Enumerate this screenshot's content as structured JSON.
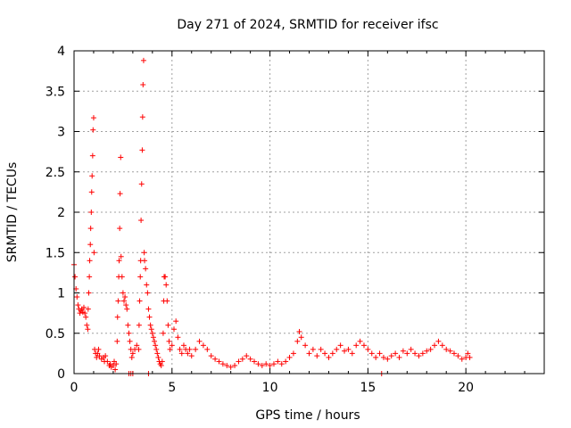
{
  "chart_data": {
    "type": "scatter",
    "title": "Day 271 of 2024, SRMTID for receiver ifsc",
    "xlabel": "GPS time / hours",
    "ylabel": "SRMTID / TECUs",
    "xlim": [
      0,
      24
    ],
    "ylim": [
      0,
      4
    ],
    "xticks": [
      "0",
      "5",
      "10",
      "15",
      "20"
    ],
    "yticks": [
      "0",
      "0.5",
      "1",
      "1.5",
      "2",
      "2.5",
      "3",
      "3.5",
      "4"
    ],
    "grid": true,
    "marker": "plus",
    "color": "#ff0000",
    "series": [
      {
        "name": "SRMTID",
        "points": [
          [
            0.0,
            1.35
          ],
          [
            0.05,
            1.2
          ],
          [
            0.1,
            1.05
          ],
          [
            0.15,
            0.95
          ],
          [
            0.2,
            0.85
          ],
          [
            0.25,
            0.8
          ],
          [
            0.3,
            0.75
          ],
          [
            0.35,
            0.78
          ],
          [
            0.4,
            0.8
          ],
          [
            0.45,
            0.76
          ],
          [
            0.5,
            0.82
          ],
          [
            0.55,
            0.75
          ],
          [
            0.6,
            0.7
          ],
          [
            0.65,
            0.6
          ],
          [
            0.7,
            0.55
          ],
          [
            0.72,
            0.8
          ],
          [
            0.75,
            1.0
          ],
          [
            0.78,
            1.2
          ],
          [
            0.8,
            1.4
          ],
          [
            0.83,
            1.6
          ],
          [
            0.85,
            1.8
          ],
          [
            0.88,
            2.0
          ],
          [
            0.9,
            2.25
          ],
          [
            0.92,
            2.45
          ],
          [
            0.95,
            2.7
          ],
          [
            0.97,
            3.02
          ],
          [
            1.0,
            3.17
          ],
          [
            1.02,
            1.5
          ],
          [
            1.05,
            0.3
          ],
          [
            1.1,
            0.25
          ],
          [
            1.15,
            0.2
          ],
          [
            1.2,
            0.25
          ],
          [
            1.25,
            0.3
          ],
          [
            1.3,
            0.22
          ],
          [
            1.4,
            0.18
          ],
          [
            1.5,
            0.2
          ],
          [
            1.55,
            0.15
          ],
          [
            1.6,
            0.22
          ],
          [
            1.7,
            0.15
          ],
          [
            1.8,
            0.1
          ],
          [
            1.85,
            0.12
          ],
          [
            1.9,
            0.08
          ],
          [
            2.0,
            0.1
          ],
          [
            2.05,
            0.15
          ],
          [
            2.1,
            0.05
          ],
          [
            2.15,
            0.12
          ],
          [
            2.2,
            0.4
          ],
          [
            2.22,
            0.7
          ],
          [
            2.25,
            0.9
          ],
          [
            2.28,
            1.2
          ],
          [
            2.3,
            1.4
          ],
          [
            2.33,
            1.8
          ],
          [
            2.35,
            2.23
          ],
          [
            2.38,
            2.68
          ],
          [
            2.4,
            1.45
          ],
          [
            2.45,
            1.2
          ],
          [
            2.5,
            1.0
          ],
          [
            2.55,
            0.9
          ],
          [
            2.6,
            0.95
          ],
          [
            2.65,
            0.85
          ],
          [
            2.7,
            0.8
          ],
          [
            2.75,
            0.6
          ],
          [
            2.8,
            0.5
          ],
          [
            2.85,
            0.4
          ],
          [
            2.9,
            0.3
          ],
          [
            2.95,
            0.2
          ],
          [
            3.0,
            0.25
          ],
          [
            3.1,
            0.3
          ],
          [
            3.2,
            0.35
          ],
          [
            3.3,
            0.3
          ],
          [
            3.32,
            0.6
          ],
          [
            3.35,
            0.9
          ],
          [
            3.38,
            1.2
          ],
          [
            3.4,
            1.4
          ],
          [
            3.42,
            1.9
          ],
          [
            3.45,
            2.35
          ],
          [
            3.48,
            2.77
          ],
          [
            3.5,
            3.18
          ],
          [
            3.52,
            3.58
          ],
          [
            3.55,
            3.88
          ],
          [
            3.58,
            1.5
          ],
          [
            3.6,
            1.4
          ],
          [
            3.65,
            1.3
          ],
          [
            3.7,
            1.1
          ],
          [
            3.75,
            1.0
          ],
          [
            3.8,
            0.8
          ],
          [
            3.85,
            0.7
          ],
          [
            3.9,
            0.6
          ],
          [
            3.95,
            0.55
          ],
          [
            4.0,
            0.5
          ],
          [
            4.05,
            0.45
          ],
          [
            4.1,
            0.4
          ],
          [
            4.15,
            0.35
          ],
          [
            4.2,
            0.3
          ],
          [
            4.25,
            0.25
          ],
          [
            4.3,
            0.2
          ],
          [
            4.35,
            0.15
          ],
          [
            4.4,
            0.12
          ],
          [
            4.45,
            0.1
          ],
          [
            4.5,
            0.15
          ],
          [
            4.55,
            0.5
          ],
          [
            4.58,
            0.9
          ],
          [
            4.6,
            1.2
          ],
          [
            4.65,
            1.2
          ],
          [
            4.7,
            1.1
          ],
          [
            4.75,
            0.9
          ],
          [
            4.8,
            0.6
          ],
          [
            4.85,
            0.4
          ],
          [
            4.9,
            0.3
          ],
          [
            5.0,
            0.35
          ],
          [
            5.1,
            0.55
          ],
          [
            5.2,
            0.65
          ],
          [
            5.3,
            0.45
          ],
          [
            5.4,
            0.3
          ],
          [
            5.5,
            0.25
          ],
          [
            5.6,
            0.35
          ],
          [
            5.7,
            0.3
          ],
          [
            5.8,
            0.25
          ],
          [
            5.9,
            0.3
          ],
          [
            6.0,
            0.22
          ],
          [
            6.2,
            0.3
          ],
          [
            6.4,
            0.4
          ],
          [
            6.6,
            0.35
          ],
          [
            6.8,
            0.3
          ],
          [
            7.0,
            0.22
          ],
          [
            7.2,
            0.18
          ],
          [
            7.4,
            0.15
          ],
          [
            7.6,
            0.12
          ],
          [
            7.8,
            0.1
          ],
          [
            8.0,
            0.08
          ],
          [
            8.2,
            0.1
          ],
          [
            8.4,
            0.15
          ],
          [
            8.6,
            0.18
          ],
          [
            8.8,
            0.22
          ],
          [
            9.0,
            0.18
          ],
          [
            9.2,
            0.15
          ],
          [
            9.4,
            0.12
          ],
          [
            9.6,
            0.1
          ],
          [
            9.8,
            0.12
          ],
          [
            10.0,
            0.1
          ],
          [
            10.2,
            0.12
          ],
          [
            10.4,
            0.15
          ],
          [
            10.6,
            0.12
          ],
          [
            10.8,
            0.15
          ],
          [
            11.0,
            0.2
          ],
          [
            11.2,
            0.25
          ],
          [
            11.4,
            0.4
          ],
          [
            11.5,
            0.52
          ],
          [
            11.6,
            0.45
          ],
          [
            11.8,
            0.35
          ],
          [
            12.0,
            0.25
          ],
          [
            12.2,
            0.3
          ],
          [
            12.4,
            0.22
          ],
          [
            12.6,
            0.3
          ],
          [
            12.8,
            0.25
          ],
          [
            13.0,
            0.2
          ],
          [
            13.2,
            0.25
          ],
          [
            13.4,
            0.3
          ],
          [
            13.6,
            0.35
          ],
          [
            13.8,
            0.28
          ],
          [
            14.0,
            0.3
          ],
          [
            14.2,
            0.25
          ],
          [
            14.4,
            0.35
          ],
          [
            14.6,
            0.4
          ],
          [
            14.8,
            0.35
          ],
          [
            15.0,
            0.3
          ],
          [
            15.2,
            0.25
          ],
          [
            15.4,
            0.2
          ],
          [
            15.6,
            0.25
          ],
          [
            15.8,
            0.2
          ],
          [
            16.0,
            0.18
          ],
          [
            16.2,
            0.22
          ],
          [
            16.4,
            0.25
          ],
          [
            16.6,
            0.2
          ],
          [
            16.8,
            0.28
          ],
          [
            17.0,
            0.25
          ],
          [
            17.2,
            0.3
          ],
          [
            17.4,
            0.25
          ],
          [
            17.6,
            0.22
          ],
          [
            17.8,
            0.25
          ],
          [
            18.0,
            0.28
          ],
          [
            18.2,
            0.3
          ],
          [
            18.4,
            0.35
          ],
          [
            18.6,
            0.4
          ],
          [
            18.8,
            0.35
          ],
          [
            19.0,
            0.3
          ],
          [
            19.2,
            0.28
          ],
          [
            19.4,
            0.25
          ],
          [
            19.6,
            0.22
          ],
          [
            19.8,
            0.18
          ],
          [
            20.0,
            0.2
          ],
          [
            20.1,
            0.25
          ],
          [
            20.2,
            0.2
          ],
          [
            2.8,
            0.0
          ],
          [
            2.9,
            0.0
          ],
          [
            3.0,
            0.0
          ],
          [
            3.8,
            0.0
          ],
          [
            15.7,
            0.0
          ]
        ]
      }
    ]
  }
}
